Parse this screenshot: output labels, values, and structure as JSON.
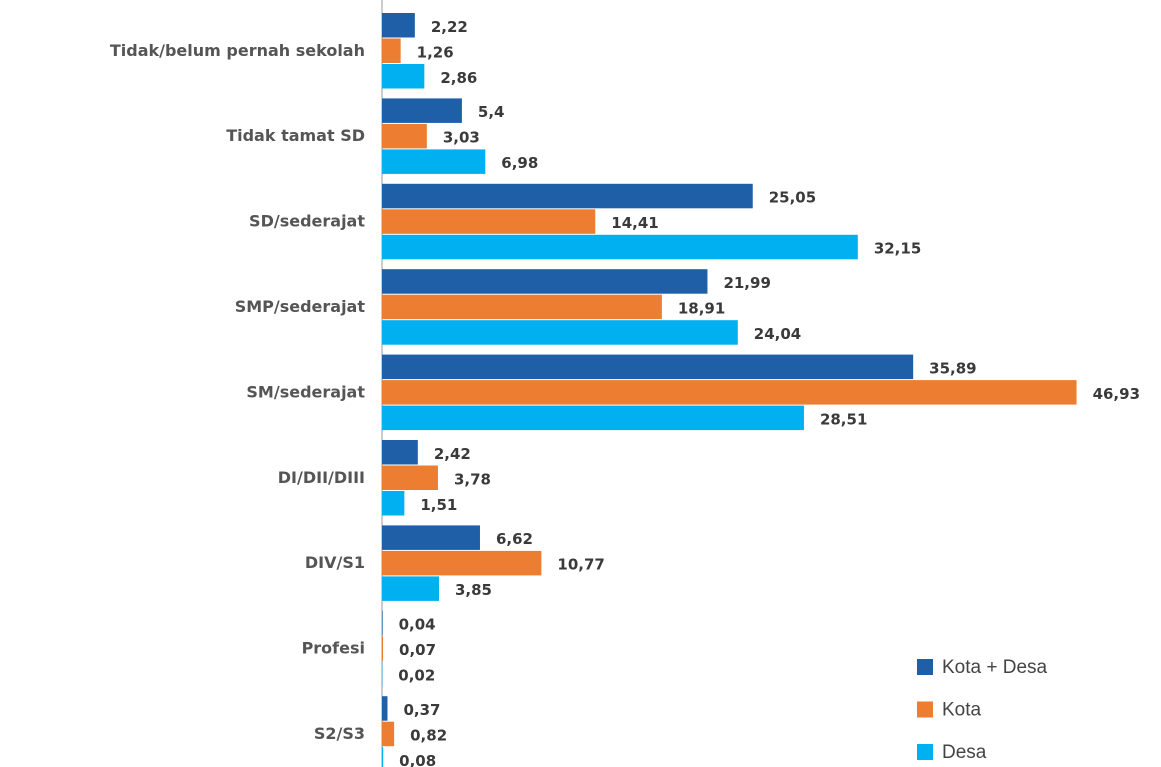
{
  "chart_data": {
    "type": "bar",
    "orientation": "horizontal",
    "categories": [
      "Tidak/belum pernah sekolah",
      "Tidak tamat SD",
      "SD/sederajat",
      "SMP/sederajat",
      "SM/sederajat",
      "DI/DII/DIII",
      "DIV/S1",
      "Profesi",
      "S2/S3"
    ],
    "series": [
      {
        "name": "Kota + Desa",
        "color": "#1f5fa8",
        "values": [
          2.22,
          5.4,
          25.05,
          21.99,
          35.89,
          2.42,
          6.62,
          0.04,
          0.37
        ],
        "value_labels": [
          "2,22",
          "5,4",
          "25,05",
          "21,99",
          "35,89",
          "2,42",
          "6,62",
          "0,04",
          "0,37"
        ]
      },
      {
        "name": "Kota",
        "color": "#ed7d31",
        "values": [
          1.26,
          3.03,
          14.41,
          18.91,
          46.93,
          3.78,
          10.77,
          0.07,
          0.82
        ],
        "value_labels": [
          "1,26",
          "3,03",
          "14,41",
          "18,91",
          "46,93",
          "3,78",
          "10,77",
          "0,07",
          "0,82"
        ]
      },
      {
        "name": "Desa",
        "color": "#00b0f0",
        "values": [
          2.86,
          6.98,
          32.15,
          24.04,
          28.51,
          1.51,
          3.85,
          0.02,
          0.08
        ],
        "value_labels": [
          "2,86",
          "6,98",
          "32,15",
          "24,04",
          "28,51",
          "1,51",
          "3,85",
          "0,02",
          "0,08"
        ]
      }
    ],
    "xlim": [
      0,
      50
    ],
    "legend": "bottom-right"
  }
}
